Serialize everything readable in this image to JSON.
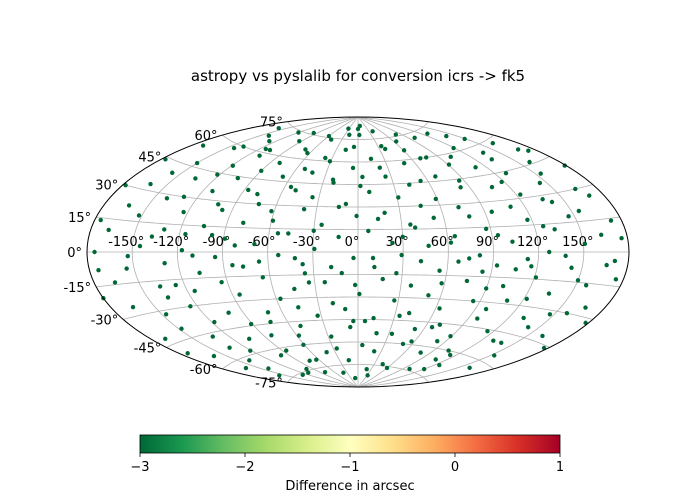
{
  "chart_data": {
    "type": "scatter",
    "projection": "aitoff",
    "title": "astropy vs pyslalib for conversion icrs -> fk5",
    "lon_ticks": [
      "-150°",
      "-120°",
      "-90°",
      "-60°",
      "-30°",
      "0°",
      "30°",
      "60°",
      "90°",
      "120°",
      "150°"
    ],
    "lat_ticks": [
      "-75°",
      "-60°",
      "-45°",
      "-30°",
      "-15°",
      "0°",
      "15°",
      "30°",
      "45°",
      "60°",
      "75°"
    ],
    "grid": true,
    "point_color": "#006837",
    "colorbar": {
      "label": "Difference in arcsec",
      "range": [
        -3,
        1
      ],
      "ticks": [
        "−3",
        "−2",
        "−1",
        "0",
        "1"
      ],
      "colormap": "RdYlGn_r",
      "stops": [
        "#006837",
        "#1a9850",
        "#66bd63",
        "#a6d96a",
        "#d9ef8b",
        "#ffffbf",
        "#fee08b",
        "#fdae61",
        "#f46d43",
        "#d73027",
        "#a50026"
      ]
    },
    "values_note": "All plotted points share the colour at the low end of the colour scale (about -3 arcsec).",
    "points": [
      [
        -172,
        54
      ],
      [
        -168,
        10
      ],
      [
        -165,
        -26
      ],
      [
        -162,
        33
      ],
      [
        -160,
        -55
      ],
      [
        -158,
        72
      ],
      [
        -155,
        -8
      ],
      [
        -152,
        18
      ],
      [
        -150,
        47
      ],
      [
        -148,
        -40
      ],
      [
        -145,
        3
      ],
      [
        -143,
        -68
      ],
      [
        -141,
        28
      ],
      [
        -139,
        60
      ],
      [
        -137,
        -18
      ],
      [
        -135,
        40
      ],
      [
        -133,
        -47
      ],
      [
        -131,
        12
      ],
      [
        -129,
        -6
      ],
      [
        -127,
        66
      ],
      [
        -125,
        -30
      ],
      [
        -123,
        22
      ],
      [
        -121,
        -58
      ],
      [
        -119,
        50
      ],
      [
        -117,
        1
      ],
      [
        -115,
        -22
      ],
      [
        -113,
        35
      ],
      [
        -111,
        -76
      ],
      [
        -109,
        58
      ],
      [
        -107,
        -12
      ],
      [
        -105,
        15
      ],
      [
        -103,
        44
      ],
      [
        -101,
        -36
      ],
      [
        -99,
        -64
      ],
      [
        -97,
        25
      ],
      [
        -95,
        -3
      ],
      [
        -93,
        70
      ],
      [
        -91,
        -44
      ],
      [
        -89,
        8
      ],
      [
        -87,
        38
      ],
      [
        -85,
        -26
      ],
      [
        -83,
        -52
      ],
      [
        -81,
        56
      ],
      [
        -79,
        18
      ],
      [
        -77,
        -9
      ],
      [
        -75,
        -70
      ],
      [
        -73,
        30
      ],
      [
        -71,
        -38
      ],
      [
        -69,
        5
      ],
      [
        -67,
        48
      ],
      [
        -65,
        -16
      ],
      [
        -63,
        64
      ],
      [
        -61,
        -60
      ],
      [
        -59,
        20
      ],
      [
        -57,
        -30
      ],
      [
        -55,
        42
      ],
      [
        -53,
        -2
      ],
      [
        -51,
        -48
      ],
      [
        -49,
        74
      ],
      [
        -47,
        12
      ],
      [
        -45,
        -24
      ],
      [
        -43,
        52
      ],
      [
        -41,
        -66
      ],
      [
        -39,
        28
      ],
      [
        -37,
        -8
      ],
      [
        -35,
        36
      ],
      [
        -33,
        -42
      ],
      [
        -31,
        60
      ],
      [
        -29,
        2
      ],
      [
        -27,
        -56
      ],
      [
        -25,
        18
      ],
      [
        -23,
        -20
      ],
      [
        -21,
        46
      ],
      [
        -19,
        -34
      ],
      [
        -17,
        68
      ],
      [
        -15,
        -72
      ],
      [
        -13,
        10
      ],
      [
        -11,
        -14
      ],
      [
        -9,
        32
      ],
      [
        -7,
        -50
      ],
      [
        -5,
        56
      ],
      [
        -3,
        -4
      ],
      [
        -1,
        24
      ],
      [
        1,
        -28
      ],
      [
        3,
        78
      ],
      [
        5,
        -62
      ],
      [
        7,
        14
      ],
      [
        9,
        40
      ],
      [
        11,
        -10
      ],
      [
        13,
        -44
      ],
      [
        15,
        62
      ],
      [
        17,
        -18
      ],
      [
        19,
        26
      ],
      [
        21,
        -66
      ],
      [
        23,
        6
      ],
      [
        25,
        50
      ],
      [
        27,
        -32
      ],
      [
        29,
        -2
      ],
      [
        31,
        36
      ],
      [
        33,
        -54
      ],
      [
        35,
        70
      ],
      [
        37,
        -22
      ],
      [
        39,
        16
      ],
      [
        41,
        -40
      ],
      [
        43,
        44
      ],
      [
        45,
        -74
      ],
      [
        47,
        4
      ],
      [
        49,
        58
      ],
      [
        51,
        -28
      ],
      [
        53,
        22
      ],
      [
        55,
        -12
      ],
      [
        57,
        -58
      ],
      [
        59,
        34
      ],
      [
        61,
        66
      ],
      [
        63,
        -36
      ],
      [
        65,
        10
      ],
      [
        67,
        -6
      ],
      [
        69,
        48
      ],
      [
        71,
        -46
      ],
      [
        73,
        28
      ],
      [
        75,
        -18
      ],
      [
        77,
        60
      ],
      [
        79,
        -64
      ],
      [
        81,
        -2
      ],
      [
        83,
        40
      ],
      [
        85,
        -30
      ],
      [
        87,
        14
      ],
      [
        89,
        -52
      ],
      [
        91,
        54
      ],
      [
        93,
        -8
      ],
      [
        95,
        24
      ],
      [
        97,
        -40
      ],
      [
        99,
        72
      ],
      [
        101,
        -20
      ],
      [
        103,
        6
      ],
      [
        105,
        -60
      ],
      [
        107,
        38
      ],
      [
        109,
        -28
      ],
      [
        111,
        50
      ],
      [
        113,
        -4
      ],
      [
        115,
        -46
      ],
      [
        117,
        18
      ],
      [
        119,
        62
      ],
      [
        121,
        -14
      ],
      [
        123,
        32
      ],
      [
        125,
        -68
      ],
      [
        127,
        0
      ],
      [
        129,
        44
      ],
      [
        131,
        -36
      ],
      [
        133,
        12
      ],
      [
        135,
        -22
      ],
      [
        137,
        56
      ],
      [
        139,
        -50
      ],
      [
        141,
        26
      ],
      [
        143,
        -8
      ],
      [
        145,
        36
      ],
      [
        147,
        -32
      ],
      [
        149,
        64
      ],
      [
        151,
        4
      ],
      [
        153,
        -56
      ],
      [
        155,
        20
      ],
      [
        157,
        -16
      ],
      [
        159,
        46
      ],
      [
        161,
        -42
      ],
      [
        163,
        8
      ],
      [
        165,
        30
      ],
      [
        167,
        -26
      ],
      [
        169,
        52
      ],
      [
        171,
        -4
      ],
      [
        173,
        14
      ],
      [
        -170,
        -42
      ],
      [
        -166,
        -14
      ],
      [
        -163,
        22
      ],
      [
        -157,
        40
      ],
      [
        -153,
        -2
      ],
      [
        -147,
        -32
      ],
      [
        -144,
        58
      ],
      [
        -138,
        8
      ],
      [
        -134,
        -54
      ],
      [
        -130,
        30
      ],
      [
        -126,
        -18
      ],
      [
        -122,
        44
      ],
      [
        -118,
        -40
      ],
      [
        -114,
        62
      ],
      [
        -110,
        -2
      ],
      [
        -106,
        -52
      ],
      [
        -102,
        28
      ],
      [
        -98,
        10
      ],
      [
        -94,
        -18
      ],
      [
        -90,
        50
      ],
      [
        -86,
        -62
      ],
      [
        -82,
        4
      ],
      [
        -78,
        36
      ],
      [
        -74,
        -44
      ],
      [
        -70,
        66
      ],
      [
        -66,
        -6
      ],
      [
        -62,
        26
      ],
      [
        -58,
        -54
      ],
      [
        -54,
        12
      ],
      [
        -50,
        40
      ],
      [
        -46,
        -36
      ],
      [
        -42,
        -4
      ],
      [
        -38,
        62
      ],
      [
        -34,
        -20
      ],
      [
        -30,
        14
      ],
      [
        -26,
        -64
      ],
      [
        -22,
        48
      ],
      [
        -18,
        -10
      ],
      [
        -14,
        30
      ],
      [
        -10,
        -38
      ],
      [
        -6,
        70
      ],
      [
        -2,
        -22
      ],
      [
        2,
        44
      ],
      [
        6,
        -46
      ],
      [
        10,
        -4
      ],
      [
        14,
        22
      ],
      [
        18,
        -54
      ],
      [
        22,
        56
      ],
      [
        26,
        -14
      ],
      [
        30,
        10
      ],
      [
        34,
        -42
      ],
      [
        38,
        68
      ],
      [
        42,
        -6
      ],
      [
        46,
        30
      ],
      [
        50,
        -60
      ],
      [
        54,
        46
      ],
      [
        58,
        -20
      ],
      [
        62,
        6
      ],
      [
        66,
        -48
      ],
      [
        70,
        60
      ],
      [
        74,
        -4
      ],
      [
        78,
        22
      ],
      [
        82,
        -56
      ],
      [
        86,
        44
      ],
      [
        90,
        -22
      ],
      [
        94,
        10
      ],
      [
        98,
        -34
      ],
      [
        102,
        58
      ],
      [
        106,
        -10
      ],
      [
        110,
        26
      ],
      [
        114,
        -62
      ],
      [
        118,
        40
      ],
      [
        122,
        -26
      ],
      [
        126,
        14
      ],
      [
        130,
        -50
      ],
      [
        134,
        52
      ],
      [
        138,
        -2
      ],
      [
        142,
        -40
      ],
      [
        146,
        18
      ],
      [
        150,
        -14
      ],
      [
        154,
        40
      ],
      [
        158,
        -30
      ],
      [
        162,
        58
      ],
      [
        166,
        -6
      ],
      [
        170,
        26
      ],
      [
        -175,
        0
      ],
      [
        -174,
        -8
      ],
      [
        175,
        -12
      ],
      [
        176,
        6
      ],
      [
        -176,
        14
      ],
      [
        -156,
        -72
      ],
      [
        -140,
        -62
      ],
      [
        -120,
        74
      ],
      [
        -100,
        -74
      ],
      [
        -80,
        -78
      ],
      [
        -60,
        76
      ],
      [
        -40,
        -80
      ],
      [
        -20,
        78
      ],
      [
        0,
        82
      ],
      [
        20,
        -78
      ],
      [
        40,
        80
      ],
      [
        60,
        -76
      ],
      [
        80,
        76
      ],
      [
        100,
        -74
      ],
      [
        120,
        -72
      ],
      [
        140,
        68
      ],
      [
        160,
        -64
      ],
      [
        -161,
        -64
      ],
      [
        -142,
        68
      ],
      [
        -96,
        76
      ],
      [
        -180,
        -20
      ],
      [
        -178,
        30
      ],
      [
        178,
        -32
      ],
      [
        179,
        40
      ],
      [
        -177,
        44
      ],
      [
        177,
        -46
      ],
      [
        -174,
        -50
      ],
      [
        174,
        50
      ],
      [
        -12,
        -84
      ],
      [
        8,
        84
      ],
      [
        -128,
        -76
      ],
      [
        128,
        72
      ],
      [
        -64,
        -70
      ],
      [
        64,
        72
      ],
      [
        -32,
        82
      ],
      [
        32,
        -82
      ],
      [
        -108,
        62
      ],
      [
        108,
        -66
      ],
      [
        -84,
        -8
      ],
      [
        84,
        -12
      ],
      [
        -52,
        54
      ],
      [
        52,
        -50
      ],
      [
        -116,
        10
      ],
      [
        116,
        -8
      ],
      [
        -36,
        -14
      ],
      [
        36,
        18
      ],
      [
        -4,
        -46
      ],
      [
        4,
        50
      ],
      [
        -136,
        -24
      ],
      [
        136,
        28
      ]
    ]
  }
}
